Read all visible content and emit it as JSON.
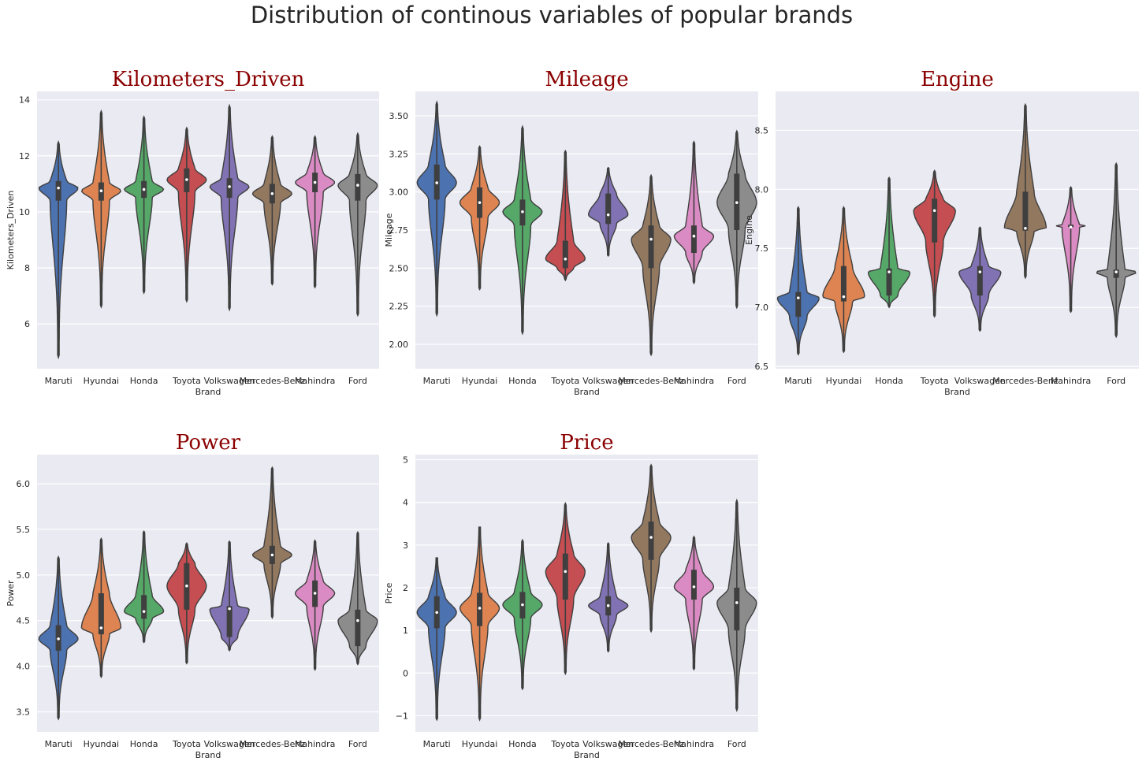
{
  "figure": {
    "title": "Distribution of continous variables of popular brands",
    "background": "#ffffff",
    "panel_background": "#eaeaf2",
    "title_color": "#8b0000"
  },
  "chart_data": [
    {
      "type": "violin",
      "title": "Kilometers_Driven",
      "xlabel": "Brand",
      "ylabel": "Kilometers_Driven",
      "categories": [
        "Maruti",
        "Hyundai",
        "Honda",
        "Toyota",
        "Volkswagen",
        "Mercedes-Benz",
        "Mahindra",
        "Ford"
      ],
      "colors": [
        "#4c72b0",
        "#dd8452",
        "#55a868",
        "#c44e52",
        "#8172b3",
        "#937860",
        "#da8bc3",
        "#8c8c8c"
      ],
      "ylim": [
        4.4,
        14.3
      ],
      "yticks": [
        6,
        8,
        10,
        12,
        14
      ],
      "grid": true,
      "stats": [
        {
          "min": 4.8,
          "q1": 10.4,
          "median": 10.85,
          "q3": 11.1,
          "max": 12.5
        },
        {
          "min": 6.6,
          "q1": 10.4,
          "median": 10.75,
          "q3": 11.05,
          "max": 13.6
        },
        {
          "min": 7.1,
          "q1": 10.5,
          "median": 10.8,
          "q3": 11.1,
          "max": 13.4
        },
        {
          "min": 6.8,
          "q1": 10.7,
          "median": 11.15,
          "q3": 11.55,
          "max": 13.0
        },
        {
          "min": 6.5,
          "q1": 10.5,
          "median": 10.9,
          "q3": 11.2,
          "max": 13.8
        },
        {
          "min": 7.4,
          "q1": 10.3,
          "median": 10.65,
          "q3": 11.0,
          "max": 12.7
        },
        {
          "min": 7.3,
          "q1": 10.7,
          "median": 11.05,
          "q3": 11.4,
          "max": 12.7
        },
        {
          "min": 6.3,
          "q1": 10.4,
          "median": 10.95,
          "q3": 11.35,
          "max": 12.8
        }
      ]
    },
    {
      "type": "violin",
      "title": "Mileage",
      "xlabel": "Brand",
      "ylabel": "Mileage",
      "categories": [
        "Maruti",
        "Hyundai",
        "Honda",
        "Toyota",
        "Volkswagen",
        "Mercedes-Benz",
        "Mahindra",
        "Ford"
      ],
      "colors": [
        "#4c72b0",
        "#dd8452",
        "#55a868",
        "#c44e52",
        "#8172b3",
        "#937860",
        "#da8bc3",
        "#8c8c8c"
      ],
      "ylim": [
        1.84,
        3.66
      ],
      "yticks": [
        2.0,
        2.25,
        2.5,
        2.75,
        3.0,
        3.25,
        3.5
      ],
      "ytick_labels": [
        "2.00",
        "2.25",
        "2.50",
        "2.75",
        "3.00",
        "3.25",
        "3.50"
      ],
      "grid": true,
      "stats": [
        {
          "min": 2.19,
          "q1": 2.95,
          "median": 3.06,
          "q3": 3.18,
          "max": 3.59
        },
        {
          "min": 2.36,
          "q1": 2.83,
          "median": 2.93,
          "q3": 3.03,
          "max": 3.3
        },
        {
          "min": 2.07,
          "q1": 2.78,
          "median": 2.87,
          "q3": 2.95,
          "max": 3.43
        },
        {
          "min": 2.42,
          "q1": 2.5,
          "median": 2.56,
          "q3": 2.68,
          "max": 3.27
        },
        {
          "min": 2.58,
          "q1": 2.79,
          "median": 2.85,
          "q3": 2.99,
          "max": 3.16
        },
        {
          "min": 1.93,
          "q1": 2.5,
          "median": 2.69,
          "q3": 2.78,
          "max": 3.11
        },
        {
          "min": 2.4,
          "q1": 2.6,
          "median": 2.71,
          "q3": 2.78,
          "max": 3.33
        },
        {
          "min": 2.24,
          "q1": 2.75,
          "median": 2.93,
          "q3": 3.12,
          "max": 3.4
        }
      ]
    },
    {
      "type": "violin",
      "title": "Engine",
      "xlabel": "Brand",
      "ylabel": "Engine",
      "categories": [
        "Maruti",
        "Hyundai",
        "Honda",
        "Toyota",
        "Volkswagen",
        "Mercedes-Benz",
        "Mahindra",
        "Ford"
      ],
      "colors": [
        "#4c72b0",
        "#dd8452",
        "#55a868",
        "#c44e52",
        "#8172b3",
        "#937860",
        "#da8bc3",
        "#8c8c8c"
      ],
      "ylim": [
        6.48,
        8.83
      ],
      "yticks": [
        6.5,
        7.0,
        7.5,
        8.0,
        8.5
      ],
      "ytick_labels": [
        "6.5",
        "7.0",
        "7.5",
        "8.0",
        "8.5"
      ],
      "grid": true,
      "stats": [
        {
          "min": 6.6,
          "q1": 6.92,
          "median": 7.08,
          "q3": 7.13,
          "max": 7.85
        },
        {
          "min": 6.62,
          "q1": 7.05,
          "median": 7.09,
          "q3": 7.35,
          "max": 7.85
        },
        {
          "min": 7.0,
          "q1": 7.1,
          "median": 7.3,
          "q3": 7.33,
          "max": 8.1
        },
        {
          "min": 6.92,
          "q1": 7.55,
          "median": 7.82,
          "q3": 7.92,
          "max": 8.16
        },
        {
          "min": 6.8,
          "q1": 7.1,
          "median": 7.3,
          "q3": 7.35,
          "max": 7.68
        },
        {
          "min": 7.25,
          "q1": 7.65,
          "median": 7.67,
          "q3": 7.98,
          "max": 8.72
        },
        {
          "min": 6.96,
          "q1": 7.68,
          "median": 7.68,
          "q3": 7.7,
          "max": 8.02
        },
        {
          "min": 6.75,
          "q1": 7.25,
          "median": 7.3,
          "q3": 7.32,
          "max": 8.22
        }
      ]
    },
    {
      "type": "violin",
      "title": "Power",
      "xlabel": "Brand",
      "ylabel": "Power",
      "categories": [
        "Maruti",
        "Hyundai",
        "Honda",
        "Toyota",
        "Volkswagen",
        "Mercedes-Benz",
        "Mahindra",
        "Ford"
      ],
      "colors": [
        "#4c72b0",
        "#dd8452",
        "#55a868",
        "#c44e52",
        "#8172b3",
        "#937860",
        "#da8bc3",
        "#8c8c8c"
      ],
      "ylim": [
        3.28,
        6.32
      ],
      "yticks": [
        3.5,
        4.0,
        4.5,
        5.0,
        5.5,
        6.0
      ],
      "ytick_labels": [
        "3.5",
        "4.0",
        "4.5",
        "5.0",
        "5.5",
        "6.0"
      ],
      "grid": true,
      "stats": [
        {
          "min": 3.42,
          "q1": 4.17,
          "median": 4.3,
          "q3": 4.45,
          "max": 5.2
        },
        {
          "min": 3.88,
          "q1": 4.35,
          "median": 4.42,
          "q3": 4.8,
          "max": 5.4
        },
        {
          "min": 4.26,
          "q1": 4.52,
          "median": 4.6,
          "q3": 4.78,
          "max": 5.48
        },
        {
          "min": 4.03,
          "q1": 4.62,
          "median": 4.88,
          "q3": 5.13,
          "max": 5.35
        },
        {
          "min": 4.17,
          "q1": 4.32,
          "median": 4.63,
          "q3": 4.66,
          "max": 5.37
        },
        {
          "min": 4.53,
          "q1": 5.12,
          "median": 5.22,
          "q3": 5.32,
          "max": 6.18
        },
        {
          "min": 3.96,
          "q1": 4.65,
          "median": 4.8,
          "q3": 4.94,
          "max": 5.38
        },
        {
          "min": 4.02,
          "q1": 4.22,
          "median": 4.5,
          "q3": 4.62,
          "max": 5.47
        }
      ]
    },
    {
      "type": "violin",
      "title": "Price",
      "xlabel": "Brand",
      "ylabel": "Price",
      "categories": [
        "Maruti",
        "Hyundai",
        "Honda",
        "Toyota",
        "Volkswagen",
        "Mercedes-Benz",
        "Mahindra",
        "Ford"
      ],
      "colors": [
        "#4c72b0",
        "#dd8452",
        "#55a868",
        "#c44e52",
        "#8172b3",
        "#937860",
        "#da8bc3",
        "#8c8c8c"
      ],
      "ylim": [
        -1.38,
        5.12
      ],
      "yticks": [
        -1,
        0,
        1,
        2,
        3,
        4,
        5
      ],
      "ytick_labels": [
        "−1",
        "0",
        "1",
        "2",
        "3",
        "4",
        "5"
      ],
      "grid": true,
      "stats": [
        {
          "min": -1.1,
          "q1": 1.05,
          "median": 1.42,
          "q3": 1.8,
          "max": 2.7
        },
        {
          "min": -1.1,
          "q1": 1.1,
          "median": 1.52,
          "q3": 1.88,
          "max": 3.42
        },
        {
          "min": -0.38,
          "q1": 1.28,
          "median": 1.6,
          "q3": 1.9,
          "max": 3.12
        },
        {
          "min": -0.02,
          "q1": 1.72,
          "median": 2.38,
          "q3": 2.8,
          "max": 3.98
        },
        {
          "min": 0.5,
          "q1": 1.35,
          "median": 1.58,
          "q3": 1.8,
          "max": 3.05
        },
        {
          "min": 0.97,
          "q1": 2.65,
          "median": 3.18,
          "q3": 3.55,
          "max": 4.88
        },
        {
          "min": 0.08,
          "q1": 1.72,
          "median": 2.02,
          "q3": 2.42,
          "max": 3.2
        },
        {
          "min": -0.88,
          "q1": 1.0,
          "median": 1.65,
          "q3": 2.0,
          "max": 4.05
        }
      ]
    }
  ]
}
